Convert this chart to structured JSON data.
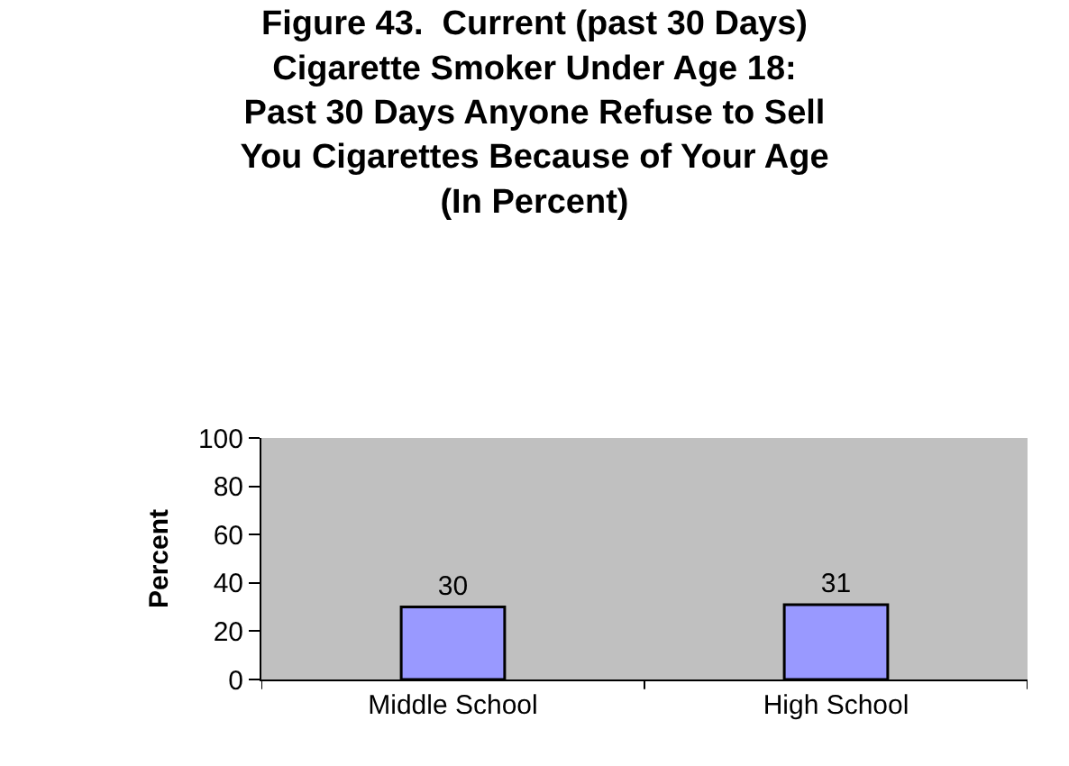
{
  "chart_data": {
    "type": "bar",
    "title": "Figure 43.  Current (past 30 Days)\nCigarette Smoker Under Age 18:\nPast 30 Days Anyone Refuse to Sell\nYou Cigarettes Because of Your Age\n(In Percent)",
    "ylabel": "Percent",
    "categories": [
      "Middle School",
      "High School"
    ],
    "values": [
      30,
      31
    ],
    "color": "#9999ff",
    "ylim": [
      0,
      100
    ],
    "yticks": [
      0,
      20,
      40,
      60,
      80,
      100
    ],
    "data_labels": true
  }
}
